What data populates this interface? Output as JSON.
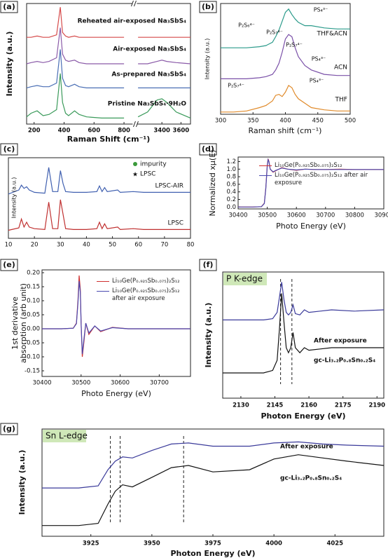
{
  "chart_data": [
    {
      "type": "line",
      "panel_label": "(a)",
      "xlabel": "Raman Shift (cm⁻¹)",
      "ylabel": "Intensity (a.u.)",
      "xlim": [
        150,
        3700
      ],
      "xbreak": [
        850,
        3150
      ],
      "ylim": [
        0,
        100
      ],
      "xticks": [
        200,
        400,
        600,
        800,
        3400,
        3600
      ],
      "x": [
        150,
        180,
        220,
        260,
        300,
        350,
        375,
        390,
        410,
        430,
        470,
        500,
        550,
        650,
        800,
        3100,
        3150,
        3250,
        3350,
        3400,
        3450,
        3550,
        3700
      ],
      "series": [
        {
          "name": "Pristine Na₃SbS₄·9H₂O",
          "color": "#3a9a5a",
          "values": [
            6,
            9,
            11,
            7,
            8,
            12,
            42,
            18,
            9,
            7,
            11,
            8,
            6,
            5,
            5,
            null,
            6,
            10,
            20,
            21,
            18,
            10,
            5
          ]
        },
        {
          "name": "As-prepared Na₃SbS₄",
          "color": "#4a6fb5",
          "values": [
            30,
            31,
            32,
            31,
            31,
            34,
            62,
            38,
            32,
            31,
            33,
            31,
            30,
            30,
            30,
            null,
            30,
            30,
            30,
            30,
            30,
            30,
            30
          ]
        },
        {
          "name": "Air-exposed Na₃SbS₄",
          "color": "#8a5aa8",
          "values": [
            50,
            51,
            52,
            51,
            52,
            55,
            80,
            58,
            53,
            52,
            53,
            51,
            50,
            50,
            50,
            null,
            50,
            50,
            52,
            53,
            52,
            51,
            50
          ]
        },
        {
          "name": "Reheated air-exposed Na₃SbS₄",
          "color": "#d64a4a",
          "values": [
            72,
            72,
            73,
            72,
            72,
            74,
            97,
            76,
            73,
            72,
            73,
            72,
            72,
            72,
            72,
            null,
            72,
            72,
            72,
            72,
            72,
            72,
            72
          ]
        }
      ]
    },
    {
      "type": "line",
      "panel_label": "(b)",
      "xlabel": "Raman shift (cm⁻¹)",
      "ylabel": "Intensity (a.u.)",
      "xlim": [
        300,
        500
      ],
      "ylim": [
        0,
        100
      ],
      "xticks": [
        300,
        350,
        400,
        450,
        500
      ],
      "x": [
        300,
        320,
        340,
        360,
        370,
        380,
        385,
        390,
        395,
        400,
        405,
        410,
        415,
        420,
        430,
        440,
        460,
        480,
        500
      ],
      "series": [
        {
          "name": "THF",
          "color": "#e08a2a",
          "values": [
            2,
            2,
            3,
            6,
            8,
            12,
            17,
            18,
            16,
            20,
            26,
            24,
            18,
            14,
            10,
            6,
            4,
            3,
            3
          ]
        },
        {
          "name": "ACN",
          "color": "#7a50a8",
          "values": [
            32,
            32,
            32,
            33,
            34,
            36,
            40,
            46,
            56,
            68,
            72,
            70,
            60,
            52,
            44,
            40,
            36,
            35,
            35
          ]
        },
        {
          "name": "THF&ACN",
          "color": "#2a9a8a",
          "values": [
            60,
            60,
            60,
            61,
            62,
            65,
            70,
            76,
            84,
            92,
            95,
            90,
            86,
            83,
            80,
            80,
            78,
            77,
            77
          ]
        }
      ],
      "annotations": [
        "P₂S₆⁴⁻",
        "P₂S₇⁴⁻",
        "PS₄³⁻",
        "P₂S₇⁴⁻",
        "PS₄³⁻",
        "P₂S₇⁴⁻",
        "PS₄³⁻"
      ]
    },
    {
      "type": "line",
      "panel_label": "(c)",
      "ylabel": "Intensity (a.u.)",
      "xlim": [
        10,
        80
      ],
      "ylim": [
        0,
        100
      ],
      "xticks": [
        10,
        20,
        30,
        40,
        50,
        60,
        70,
        80
      ],
      "x": [
        10,
        14,
        15,
        16,
        17,
        18,
        20,
        24,
        25.5,
        27,
        29,
        30,
        31,
        32,
        35,
        40,
        44,
        45,
        46,
        47,
        48,
        52,
        53,
        58,
        62,
        70,
        75,
        80
      ],
      "series": [
        {
          "name": "LPSC",
          "color": "#c03030",
          "values": [
            10,
            13,
            24,
            14,
            20,
            14,
            12,
            11,
            45,
            12,
            12,
            48,
            30,
            12,
            11,
            11,
            12,
            20,
            12,
            18,
            12,
            14,
            11,
            12,
            11,
            11,
            11,
            11
          ]
        },
        {
          "name": "LPSC-AIR",
          "color": "#4060b0",
          "values": [
            55,
            60,
            66,
            62,
            64,
            60,
            57,
            56,
            88,
            58,
            58,
            84,
            68,
            58,
            57,
            57,
            58,
            65,
            58,
            63,
            58,
            60,
            57,
            58,
            57,
            57,
            57,
            57
          ]
        }
      ],
      "legend": [
        "impurity",
        "LPSC"
      ]
    },
    {
      "type": "line",
      "panel_label": "(d)",
      "xlabel": "Photo Energy (eV)",
      "ylabel": "Normalized xμ(E)",
      "legend_box": true,
      "xlim": [
        30400,
        30900
      ],
      "ylim": [
        -0.05,
        1.32
      ],
      "xticks": [
        30400,
        30500,
        30600,
        30700,
        30800,
        30900
      ],
      "yticks": [
        {
          "value": 0,
          "label": "0.0"
        },
        0.2,
        0.4,
        0.6,
        0.8,
        {
          "value": 1,
          "label": "1.0"
        },
        1.2
      ],
      "x": [
        30400,
        30450,
        30480,
        30490,
        30495,
        30500,
        30503,
        30506,
        30510,
        30520,
        30530,
        30550,
        30570,
        30600,
        30630,
        30660,
        30700,
        30750,
        30800,
        30900
      ],
      "series": [
        {
          "name": "Li₁₀Ge(P₀.₉₂₅Sb₀.₀₇₅)₂S₁₂",
          "color": "#d03030",
          "values": [
            0,
            0,
            0.01,
            0.1,
            0.5,
            1.1,
            1.27,
            1.2,
            1.0,
            0.92,
            0.96,
            1.04,
            1.0,
            0.97,
            1.0,
            0.99,
            0.99,
            1.0,
            0.99,
            0.99
          ]
        },
        {
          "name": "Li₁₀Ge(P₀.₉₂₅Sb₀.₀₇₅)₂S₁₂ after air exposure",
          "color": "#4a4ab0",
          "values": [
            0,
            0,
            0.01,
            0.09,
            0.48,
            1.08,
            1.25,
            1.19,
            1.0,
            0.93,
            0.97,
            1.03,
            1.0,
            0.98,
            1.0,
            0.99,
            0.99,
            0.99,
            0.99,
            0.99
          ]
        }
      ]
    },
    {
      "type": "line",
      "panel_label": "(e)",
      "xlabel": "Photo Energy (eV)",
      "ylabel": [
        "1st derivative",
        "absorption (arb unit)"
      ],
      "legend_box": true,
      "xlim": [
        30400,
        30780
      ],
      "ylim": [
        -0.17,
        0.21
      ],
      "xticks": [
        30400,
        30500,
        30600,
        30700
      ],
      "yticks": [
        {
          "value": 0.2,
          "label": "0.20"
        },
        0.15,
        {
          "value": 0.1,
          "label": "0.10"
        },
        0.05,
        {
          "value": 0,
          "label": "0.00"
        },
        -0.05,
        {
          "value": -0.1,
          "label": "-0.10"
        },
        -0.15
      ],
      "x": [
        30400,
        30450,
        30480,
        30488,
        30492,
        30495,
        30498,
        30500,
        30503,
        30507,
        30512,
        30520,
        30535,
        30550,
        30580,
        30620,
        30660,
        30700,
        30740,
        30780
      ],
      "series": [
        {
          "name": "Li₁₀Ge(P₀.₉₂₅Sb₀.₀₇₅)₂S₁₂",
          "color": "#d03030",
          "values": [
            0,
            0,
            0.002,
            0.02,
            0.1,
            0.19,
            0.14,
            0.02,
            -0.1,
            -0.05,
            0.02,
            -0.02,
            0.01,
            -0.01,
            0.005,
            0,
            0,
            0,
            0,
            0
          ]
        },
        {
          "name": "Li₁₀Ge(P₀.₉₂₅Sb₀.₀₇₅)₂S₁₂ after air exposure",
          "color": "#4a4ab0",
          "values": [
            0,
            0,
            0.002,
            0.018,
            0.09,
            0.17,
            0.13,
            0.02,
            -0.09,
            -0.04,
            0.02,
            -0.015,
            0.01,
            -0.008,
            0.004,
            0,
            0,
            0,
            0,
            0
          ]
        }
      ]
    },
    {
      "type": "line",
      "panel_label": "(f)",
      "title": "P K-edge",
      "xlabel": "Photon Energy (eV)",
      "ylabel": "Intensity (a.u.)",
      "xlim": [
        2122,
        2193
      ],
      "ylim": [
        0,
        100
      ],
      "xticks": [
        2130,
        2145,
        2160,
        2175,
        2190
      ],
      "vlines": [
        2147.5,
        2152.5
      ],
      "x": [
        2122,
        2140,
        2144,
        2146,
        2147,
        2148,
        2149,
        2150,
        2151,
        2152,
        2153,
        2154,
        2156,
        2158,
        2160,
        2165,
        2170,
        2180,
        2193
      ],
      "series": [
        {
          "name": "gc-Li₃.₂P₀.₈Sn₀.₂S₄",
          "color": "#111111",
          "values": [
            20,
            20,
            22,
            30,
            55,
            83,
            60,
            40,
            36,
            40,
            52,
            40,
            36,
            40,
            38,
            39,
            40,
            40,
            40
          ]
        },
        {
          "name": "After exposure",
          "color": "#3a3a9a",
          "values": [
            62,
            62,
            63,
            68,
            80,
            92,
            78,
            68,
            66,
            68,
            74,
            67,
            66,
            70,
            68,
            69,
            70,
            69,
            70
          ]
        }
      ]
    },
    {
      "type": "line",
      "panel_label": "(g)",
      "title": "Sn L-edge",
      "xlabel": "Photon Energy (eV)",
      "ylabel": "Intensity (a.u.)",
      "xlim": [
        3905,
        4045
      ],
      "ylim": [
        0,
        100
      ],
      "xticks": [
        3925,
        3950,
        3975,
        4000,
        4025
      ],
      "vlines": [
        3933,
        3937,
        3963
      ],
      "x": [
        3905,
        3920,
        3928,
        3932,
        3935,
        3938,
        3942,
        3950,
        3958,
        3965,
        3975,
        3990,
        4000,
        4010,
        4020,
        4030,
        4045
      ],
      "series": [
        {
          "name": "gc-Li₃.₂P₀.₈Sn₀.₂S₄",
          "color": "#111111",
          "values": [
            10,
            10,
            12,
            30,
            42,
            48,
            46,
            55,
            64,
            66,
            60,
            62,
            72,
            76,
            73,
            70,
            66
          ]
        },
        {
          "name": "After exposure",
          "color": "#3a3a9a",
          "values": [
            45,
            45,
            47,
            62,
            70,
            74,
            73,
            80,
            86,
            87,
            84,
            84,
            87,
            88,
            86,
            85,
            84
          ]
        }
      ]
    }
  ]
}
